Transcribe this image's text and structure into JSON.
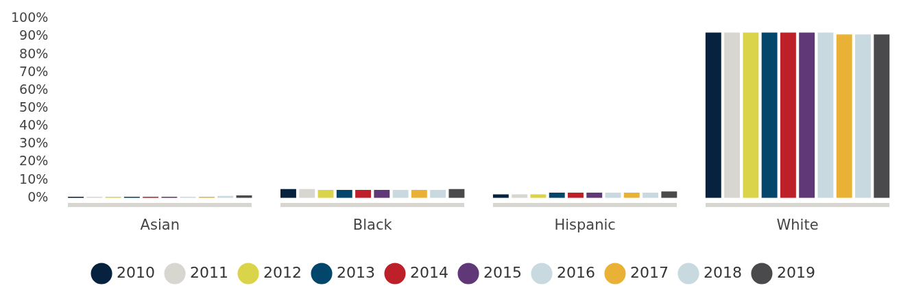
{
  "chart_data": {
    "type": "bar",
    "categories": [
      "Asian",
      "Black",
      "Hispanic",
      "White"
    ],
    "series": [
      {
        "name": "2010",
        "color": "#06223f",
        "values": [
          0.7,
          5,
          2,
          92.3
        ]
      },
      {
        "name": "2011",
        "color": "#d8d6d1",
        "values": [
          0.7,
          5,
          2,
          92.3
        ]
      },
      {
        "name": "2012",
        "color": "#d9d44a",
        "values": [
          0.7,
          4.5,
          2,
          92.3
        ]
      },
      {
        "name": "2013",
        "color": "#02466c",
        "values": [
          0.7,
          4.5,
          3,
          92.3
        ]
      },
      {
        "name": "2014",
        "color": "#bd2029",
        "values": [
          0.7,
          4.5,
          3,
          92.3
        ]
      },
      {
        "name": "2015",
        "color": "#603878",
        "values": [
          0.7,
          4.5,
          3,
          92.3
        ]
      },
      {
        "name": "2016",
        "color": "#c8d9df",
        "values": [
          0.7,
          4.5,
          3,
          92.3
        ]
      },
      {
        "name": "2017",
        "color": "#e9b237",
        "values": [
          0.7,
          4.5,
          3,
          91.3
        ]
      },
      {
        "name": "2018",
        "color": "#c8d9df",
        "values": [
          1.2,
          4.5,
          3,
          91.3
        ]
      },
      {
        "name": "2019",
        "color": "#4a4a4c",
        "values": [
          1.5,
          5,
          3.7,
          91.3
        ]
      }
    ],
    "ylim": [
      0,
      100
    ],
    "yticks": [
      {
        "value": 0,
        "label": "0%"
      },
      {
        "value": 10,
        "label": "10%"
      },
      {
        "value": 20,
        "label": "20%"
      },
      {
        "value": 30,
        "label": "30%"
      },
      {
        "value": 40,
        "label": "40%"
      },
      {
        "value": 50,
        "label": "50%"
      },
      {
        "value": 60,
        "label": "60%"
      },
      {
        "value": 70,
        "label": "70%"
      },
      {
        "value": 80,
        "label": "80%"
      },
      {
        "value": 90,
        "label": "90%"
      },
      {
        "value": 100,
        "label": "100%"
      }
    ],
    "grid": false,
    "legend": "bottom"
  }
}
